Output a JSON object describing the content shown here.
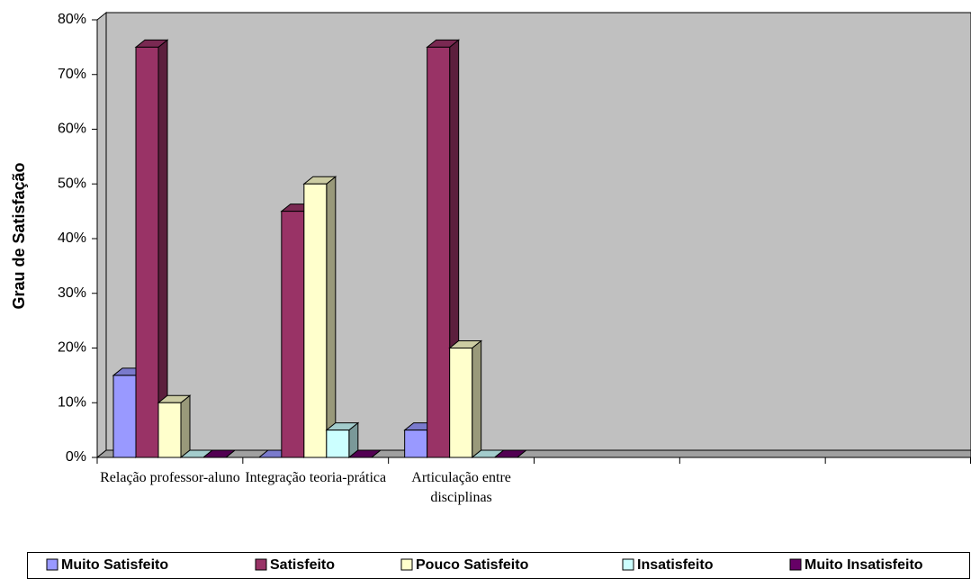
{
  "chart_data": {
    "type": "bar",
    "y_label": "Grau de Satisfação",
    "categories": [
      "Relação professor-aluno",
      "Integração teoria-prática",
      "Articulação entre disciplinas",
      null,
      null,
      null
    ],
    "series": [
      {
        "name": "Muito Satisfeito",
        "color": "#9999ff",
        "values": [
          15,
          0,
          5,
          null,
          null,
          null
        ]
      },
      {
        "name": "Satisfeito",
        "color": "#993366",
        "values": [
          75,
          45,
          75,
          null,
          null,
          null
        ]
      },
      {
        "name": "Pouco Satisfeito",
        "color": "#ffffcc",
        "values": [
          10,
          50,
          20,
          null,
          null,
          null
        ]
      },
      {
        "name": "Insatisfeito",
        "color": "#ccffff",
        "values": [
          0,
          5,
          0,
          null,
          null,
          null
        ]
      },
      {
        "name": "Muito Insatisfeito",
        "color": "#660066",
        "values": [
          0,
          0,
          0,
          null,
          null,
          null
        ]
      }
    ],
    "ylim": [
      0,
      80
    ],
    "yticks": [
      {
        "value": 0,
        "label": "0%"
      },
      {
        "value": 10,
        "label": "10%"
      },
      {
        "value": 20,
        "label": "20%"
      },
      {
        "value": 30,
        "label": "30%"
      },
      {
        "value": 40,
        "label": "40%"
      },
      {
        "value": 50,
        "label": "50%"
      },
      {
        "value": 60,
        "label": "60%"
      },
      {
        "value": 70,
        "label": "70%"
      },
      {
        "value": 80,
        "label": "80%"
      }
    ],
    "legend": "bottom",
    "grid": false,
    "wall_color": "#c0c0c0"
  }
}
